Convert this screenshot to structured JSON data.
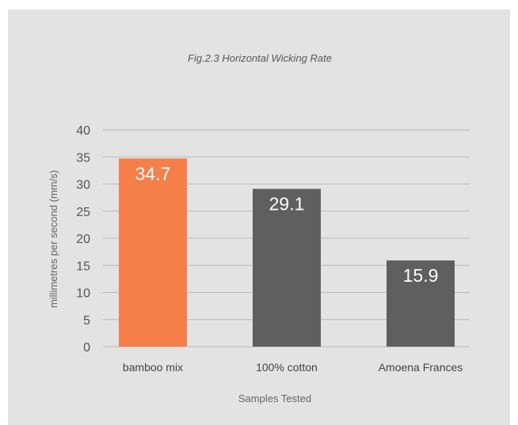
{
  "chart_data": {
    "type": "bar",
    "title": "Fig.2.3 Horizontal Wicking Rate",
    "xlabel": "Samples Tested",
    "ylabel": "millimetres per second (mm/s)",
    "categories": [
      "bamboo mix",
      "100% cotton",
      "Amoena Frances"
    ],
    "values": [
      34.7,
      29.1,
      15.9
    ],
    "value_labels": [
      "34.7",
      "29.1",
      "15.9"
    ],
    "bar_colors": [
      "#f47f48",
      "#5f5f5f",
      "#5f5f5f"
    ],
    "ylim": [
      0,
      40
    ],
    "yticks": [
      0,
      5,
      10,
      15,
      20,
      25,
      30,
      35,
      40
    ],
    "grid": true,
    "background_color": "#e3e3e3"
  }
}
